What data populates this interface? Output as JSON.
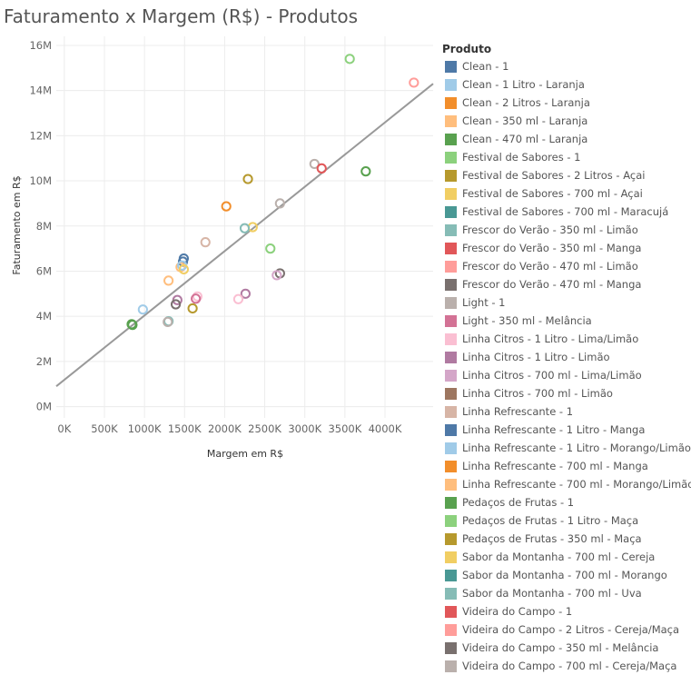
{
  "chart_data": {
    "type": "scatter",
    "title": "Faturamento x Margem (R$) - Produtos",
    "xlabel": "Margem em R$",
    "ylabel": "Faturamento em R$",
    "xlim": [
      -100000,
      4600000
    ],
    "ylim": [
      -500000,
      16400000
    ],
    "x_ticks": [
      {
        "value": 0,
        "label": "0K"
      },
      {
        "value": 500000,
        "label": "500K"
      },
      {
        "value": 1000000,
        "label": "1000K"
      },
      {
        "value": 1500000,
        "label": "1500K"
      },
      {
        "value": 2000000,
        "label": "2000K"
      },
      {
        "value": 2500000,
        "label": "2500K"
      },
      {
        "value": 3000000,
        "label": "3000K"
      },
      {
        "value": 3500000,
        "label": "3500K"
      },
      {
        "value": 4000000,
        "label": "4000K"
      }
    ],
    "y_ticks": [
      {
        "value": 0,
        "label": "0M"
      },
      {
        "value": 2000000,
        "label": "2M"
      },
      {
        "value": 4000000,
        "label": "4M"
      },
      {
        "value": 6000000,
        "label": "6M"
      },
      {
        "value": 8000000,
        "label": "8M"
      },
      {
        "value": 10000000,
        "label": "10M"
      },
      {
        "value": 12000000,
        "label": "12M"
      },
      {
        "value": 14000000,
        "label": "14M"
      },
      {
        "value": 16000000,
        "label": "16M"
      }
    ],
    "grid": true,
    "trend_line": {
      "points": [
        [
          -100000,
          900000
        ],
        [
          4600000,
          14300000
        ]
      ],
      "color": "#999999"
    },
    "legend_title": "Produto",
    "legend_position": "right",
    "series": [
      {
        "name": "Clean - 1",
        "color": "#4e79a7"
      },
      {
        "name": "Clean - 1 Litro - Laranja",
        "color": "#a0cbe8"
      },
      {
        "name": "Clean - 2 Litros - Laranja",
        "color": "#f28e2b"
      },
      {
        "name": "Clean - 350 ml - Laranja",
        "color": "#ffbe7d"
      },
      {
        "name": "Clean - 470 ml - Laranja",
        "color": "#59a14f"
      },
      {
        "name": "Festival de Sabores - 1",
        "color": "#8cd17d"
      },
      {
        "name": "Festival de Sabores - 2 Litros - Açai",
        "color": "#b6992d"
      },
      {
        "name": "Festival de Sabores - 700 ml - Açai",
        "color": "#f1ce63"
      },
      {
        "name": "Festival de Sabores - 700 ml - Maracujá",
        "color": "#499894"
      },
      {
        "name": "Frescor do Verão - 350 ml - Limão",
        "color": "#86bcb6"
      },
      {
        "name": "Frescor do Verão - 350 ml - Manga",
        "color": "#e15759"
      },
      {
        "name": "Frescor do Verão - 470 ml - Limão",
        "color": "#ff9d9a"
      },
      {
        "name": "Frescor do Verão - 470 ml - Manga",
        "color": "#79706e"
      },
      {
        "name": "Light - 1",
        "color": "#bab0ac"
      },
      {
        "name": "Light - 350 ml - Melância",
        "color": "#d37295"
      },
      {
        "name": "Linha Citros - 1 Litro - Lima/Limão",
        "color": "#fabfd2"
      },
      {
        "name": "Linha Citros - 1 Litro - Limão",
        "color": "#b07aa1"
      },
      {
        "name": "Linha Citros - 700 ml - Lima/Limão",
        "color": "#d4a6c8"
      },
      {
        "name": "Linha Citros - 700 ml - Limão",
        "color": "#9d7660"
      },
      {
        "name": "Linha Refrescante - 1",
        "color": "#d7b5a6"
      },
      {
        "name": "Linha Refrescante - 1 Litro - Manga",
        "color": "#4e79a7"
      },
      {
        "name": "Linha Refrescante - 1 Litro - Morango/Limão",
        "color": "#a0cbe8"
      },
      {
        "name": "Linha Refrescante - 700 ml - Manga",
        "color": "#f28e2b"
      },
      {
        "name": "Linha Refrescante - 700 ml - Morango/Limão",
        "color": "#ffbe7d"
      },
      {
        "name": "Pedaços de Frutas - 1",
        "color": "#59a14f"
      },
      {
        "name": "Pedaços de Frutas - 1 Litro - Maça",
        "color": "#8cd17d"
      },
      {
        "name": "Pedaços de Frutas - 350 ml - Maça",
        "color": "#b6992d"
      },
      {
        "name": "Sabor da Montanha - 700 ml - Cereja",
        "color": "#f1ce63"
      },
      {
        "name": "Sabor da Montanha - 700 ml - Morango",
        "color": "#499894"
      },
      {
        "name": "Sabor da Montanha - 700 ml - Uva",
        "color": "#86bcb6"
      },
      {
        "name": "Videira do Campo - 1",
        "color": "#e15759"
      },
      {
        "name": "Videira do Campo - 2 Litros - Cereja/Maça",
        "color": "#ff9d9a"
      },
      {
        "name": "Videira do Campo - 350 ml - Melância",
        "color": "#79706e"
      },
      {
        "name": "Videira do Campo - 700 ml - Cereja/Maça",
        "color": "#bab0ac"
      }
    ],
    "points": [
      {
        "x": 3560000,
        "y": 15400000,
        "color": "#8cd17d"
      },
      {
        "x": 4360000,
        "y": 14350000,
        "color": "#ff9d9a"
      },
      {
        "x": 3120000,
        "y": 10750000,
        "color": "#bab0ac"
      },
      {
        "x": 3210000,
        "y": 10550000,
        "color": "#e15759"
      },
      {
        "x": 3760000,
        "y": 10420000,
        "color": "#59a14f"
      },
      {
        "x": 2290000,
        "y": 10080000,
        "color": "#b6992d"
      },
      {
        "x": 2690000,
        "y": 9000000,
        "color": "#bab0ac"
      },
      {
        "x": 2020000,
        "y": 8870000,
        "color": "#f28e2b"
      },
      {
        "x": 2350000,
        "y": 7950000,
        "color": "#f1ce63"
      },
      {
        "x": 2250000,
        "y": 7900000,
        "color": "#86bcb6"
      },
      {
        "x": 1760000,
        "y": 7280000,
        "color": "#d7b5a6"
      },
      {
        "x": 2570000,
        "y": 7000000,
        "color": "#8cd17d"
      },
      {
        "x": 1490000,
        "y": 6560000,
        "color": "#4e79a7"
      },
      {
        "x": 1480000,
        "y": 6420000,
        "color": "#4e79a7"
      },
      {
        "x": 1450000,
        "y": 6180000,
        "color": "#ffbe7d"
      },
      {
        "x": 1470000,
        "y": 6250000,
        "color": "#a0cbe8"
      },
      {
        "x": 1490000,
        "y": 6080000,
        "color": "#f1ce63"
      },
      {
        "x": 1300000,
        "y": 5580000,
        "color": "#ffbe7d"
      },
      {
        "x": 2690000,
        "y": 5900000,
        "color": "#79706e"
      },
      {
        "x": 2650000,
        "y": 5820000,
        "color": "#d4a6c8"
      },
      {
        "x": 2260000,
        "y": 5000000,
        "color": "#b07aa1"
      },
      {
        "x": 1660000,
        "y": 4880000,
        "color": "#fabfd2"
      },
      {
        "x": 1640000,
        "y": 4780000,
        "color": "#d37295"
      },
      {
        "x": 2170000,
        "y": 4760000,
        "color": "#fabfd2"
      },
      {
        "x": 1410000,
        "y": 4720000,
        "color": "#b07aa1"
      },
      {
        "x": 1390000,
        "y": 4530000,
        "color": "#79706e"
      },
      {
        "x": 1600000,
        "y": 4350000,
        "color": "#b6992d"
      },
      {
        "x": 980000,
        "y": 4300000,
        "color": "#a0cbe8"
      },
      {
        "x": 1300000,
        "y": 3780000,
        "color": "#86bcb6"
      },
      {
        "x": 1290000,
        "y": 3750000,
        "color": "#bab0ac"
      },
      {
        "x": 840000,
        "y": 3650000,
        "color": "#59a14f"
      },
      {
        "x": 850000,
        "y": 3620000,
        "color": "#59a14f"
      }
    ]
  }
}
